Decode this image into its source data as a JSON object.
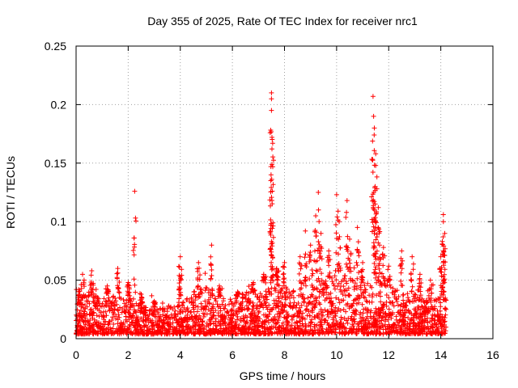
{
  "chart_data": {
    "type": "scatter",
    "title": "Day 355 of 2025, Rate Of TEC Index for receiver nrc1",
    "xlabel": "GPS time / hours",
    "ylabel": "ROTI / TECUs",
    "xlim": [
      0,
      16
    ],
    "ylim": [
      0,
      0.25
    ],
    "x_ticks": [
      "0",
      "2",
      "4",
      "6",
      "8",
      "10",
      "12",
      "14",
      "16"
    ],
    "y_ticks": [
      "0",
      "0.05",
      "0.1",
      "0.15",
      "0.2",
      "0.25"
    ],
    "grid": true,
    "marker": "plus",
    "color": "#ff0000",
    "series": [
      {
        "name": "ROTI",
        "peaks": [
          {
            "x": 0.1,
            "y": 0.042
          },
          {
            "x": 0.25,
            "y": 0.055
          },
          {
            "x": 0.6,
            "y": 0.058
          },
          {
            "x": 1.2,
            "y": 0.045
          },
          {
            "x": 1.6,
            "y": 0.06
          },
          {
            "x": 2.0,
            "y": 0.048
          },
          {
            "x": 2.25,
            "y": 0.126
          },
          {
            "x": 2.5,
            "y": 0.038
          },
          {
            "x": 3.0,
            "y": 0.032
          },
          {
            "x": 4.0,
            "y": 0.07
          },
          {
            "x": 4.0,
            "y": 0.05
          },
          {
            "x": 4.7,
            "y": 0.065
          },
          {
            "x": 5.2,
            "y": 0.08
          },
          {
            "x": 5.5,
            "y": 0.045
          },
          {
            "x": 6.2,
            "y": 0.04
          },
          {
            "x": 6.8,
            "y": 0.048
          },
          {
            "x": 7.2,
            "y": 0.055
          },
          {
            "x": 7.5,
            "y": 0.21
          },
          {
            "x": 7.5,
            "y": 0.205
          },
          {
            "x": 7.5,
            "y": 0.195
          },
          {
            "x": 7.52,
            "y": 0.172
          },
          {
            "x": 7.52,
            "y": 0.149
          },
          {
            "x": 7.5,
            "y": 0.083
          },
          {
            "x": 7.7,
            "y": 0.06
          },
          {
            "x": 8.0,
            "y": 0.065
          },
          {
            "x": 8.6,
            "y": 0.07
          },
          {
            "x": 8.8,
            "y": 0.092
          },
          {
            "x": 9.0,
            "y": 0.08
          },
          {
            "x": 9.2,
            "y": 0.105
          },
          {
            "x": 9.3,
            "y": 0.125
          },
          {
            "x": 9.4,
            "y": 0.09
          },
          {
            "x": 9.7,
            "y": 0.075
          },
          {
            "x": 10.0,
            "y": 0.123
          },
          {
            "x": 10.1,
            "y": 0.1
          },
          {
            "x": 10.4,
            "y": 0.118
          },
          {
            "x": 10.5,
            "y": 0.085
          },
          {
            "x": 10.8,
            "y": 0.095
          },
          {
            "x": 11.0,
            "y": 0.065
          },
          {
            "x": 11.4,
            "y": 0.207
          },
          {
            "x": 11.42,
            "y": 0.19
          },
          {
            "x": 11.45,
            "y": 0.18
          },
          {
            "x": 11.5,
            "y": 0.158
          },
          {
            "x": 11.5,
            "y": 0.148
          },
          {
            "x": 11.48,
            "y": 0.13
          },
          {
            "x": 11.6,
            "y": 0.112
          },
          {
            "x": 11.65,
            "y": 0.08
          },
          {
            "x": 11.8,
            "y": 0.078
          },
          {
            "x": 12.0,
            "y": 0.062
          },
          {
            "x": 12.5,
            "y": 0.075
          },
          {
            "x": 12.9,
            "y": 0.07
          },
          {
            "x": 13.2,
            "y": 0.055
          },
          {
            "x": 13.6,
            "y": 0.05
          },
          {
            "x": 14.0,
            "y": 0.07
          },
          {
            "x": 14.1,
            "y": 0.106
          },
          {
            "x": 14.1,
            "y": 0.1
          },
          {
            "x": 14.15,
            "y": 0.09
          },
          {
            "x": 14.1,
            "y": 0.065
          }
        ],
        "envelope": [
          {
            "x": 0.0,
            "y": 0.03
          },
          {
            "x": 0.5,
            "y": 0.04
          },
          {
            "x": 1.0,
            "y": 0.036
          },
          {
            "x": 1.5,
            "y": 0.04
          },
          {
            "x": 2.0,
            "y": 0.038
          },
          {
            "x": 2.5,
            "y": 0.03
          },
          {
            "x": 3.0,
            "y": 0.026
          },
          {
            "x": 3.5,
            "y": 0.028
          },
          {
            "x": 4.0,
            "y": 0.03
          },
          {
            "x": 4.5,
            "y": 0.04
          },
          {
            "x": 5.0,
            "y": 0.045
          },
          {
            "x": 5.5,
            "y": 0.035
          },
          {
            "x": 6.0,
            "y": 0.035
          },
          {
            "x": 6.5,
            "y": 0.04
          },
          {
            "x": 7.0,
            "y": 0.042
          },
          {
            "x": 7.5,
            "y": 0.05
          },
          {
            "x": 8.0,
            "y": 0.045
          },
          {
            "x": 8.5,
            "y": 0.04
          },
          {
            "x": 9.0,
            "y": 0.045
          },
          {
            "x": 9.5,
            "y": 0.05
          },
          {
            "x": 10.0,
            "y": 0.055
          },
          {
            "x": 10.5,
            "y": 0.055
          },
          {
            "x": 11.0,
            "y": 0.045
          },
          {
            "x": 11.5,
            "y": 0.05
          },
          {
            "x": 12.0,
            "y": 0.045
          },
          {
            "x": 12.5,
            "y": 0.04
          },
          {
            "x": 13.0,
            "y": 0.04
          },
          {
            "x": 13.5,
            "y": 0.032
          },
          {
            "x": 14.0,
            "y": 0.035
          },
          {
            "x": 14.2,
            "y": 0.03
          }
        ],
        "x_range": [
          0.0,
          14.2
        ],
        "baseline_min": 0.004
      }
    ]
  }
}
